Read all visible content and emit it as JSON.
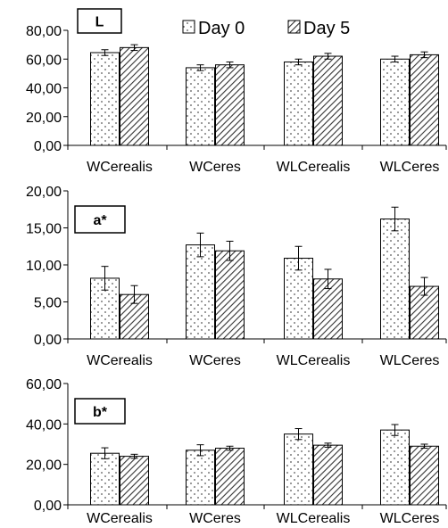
{
  "legend": {
    "items": [
      {
        "label": "Day 0",
        "pattern": "dots"
      },
      {
        "label": "Day 5",
        "pattern": "hatch"
      }
    ]
  },
  "chart_data": [
    {
      "type": "bar",
      "title": "L",
      "categories": [
        "WCerealis",
        "WCeres",
        "WLCerealis",
        "WLCeres"
      ],
      "series": [
        {
          "name": "Day 0",
          "values": [
            64.5,
            54.0,
            58.0,
            60.0
          ],
          "errors": [
            2.0,
            2.0,
            2.0,
            2.0
          ]
        },
        {
          "name": "Day 5",
          "values": [
            68.0,
            56.0,
            62.0,
            63.0
          ],
          "errors": [
            2.0,
            2.0,
            2.0,
            2.0
          ]
        }
      ],
      "ylim": [
        0,
        80
      ],
      "yticks": [
        "0,00",
        "20,00",
        "40,00",
        "60,00",
        "80,00"
      ],
      "ytick_values": [
        0,
        20,
        40,
        60,
        80
      ],
      "grid": false
    },
    {
      "type": "bar",
      "title": "a*",
      "categories": [
        "WCerealis",
        "WCeres",
        "WLCerealis",
        "WLCeres"
      ],
      "series": [
        {
          "name": "Day 0",
          "values": [
            8.2,
            12.7,
            10.9,
            16.2
          ],
          "errors": [
            1.6,
            1.6,
            1.6,
            1.6
          ]
        },
        {
          "name": "Day 5",
          "values": [
            6.0,
            11.9,
            8.1,
            7.1
          ],
          "errors": [
            1.2,
            1.3,
            1.3,
            1.2
          ]
        }
      ],
      "ylim": [
        0,
        20
      ],
      "yticks": [
        "0,00",
        "5,00",
        "10,00",
        "15,00",
        "20,00"
      ],
      "ytick_values": [
        0,
        5,
        10,
        15,
        20
      ],
      "grid": false
    },
    {
      "type": "bar",
      "title": "b*",
      "categories": [
        "WCerealis",
        "WCeres",
        "WLCerealis",
        "WLCeres"
      ],
      "series": [
        {
          "name": "Day 0",
          "values": [
            25.5,
            27.0,
            35.0,
            37.0
          ],
          "errors": [
            2.7,
            2.7,
            2.7,
            2.7
          ]
        },
        {
          "name": "Day 5",
          "values": [
            24.0,
            28.0,
            29.5,
            29.0
          ],
          "errors": [
            1.0,
            1.0,
            1.0,
            1.0
          ]
        }
      ],
      "ylim": [
        0,
        60
      ],
      "yticks": [
        "0,00",
        "20,00",
        "40,00",
        "60,00"
      ],
      "ytick_values": [
        0,
        20,
        40,
        60
      ],
      "grid": false
    }
  ]
}
